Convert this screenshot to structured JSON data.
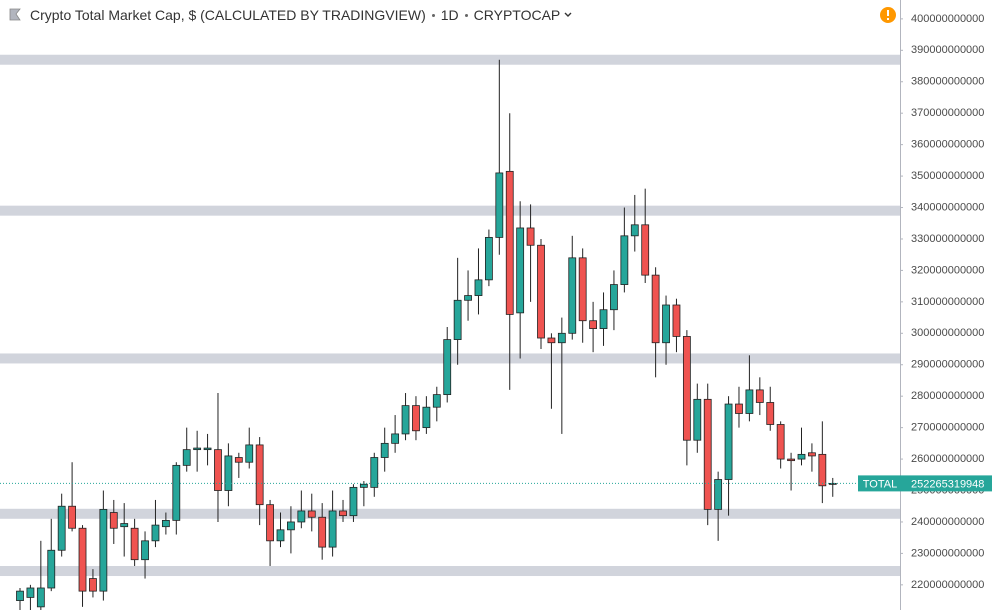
{
  "chart_data": {
    "type": "candlestick",
    "title": "Crypto Total Market Cap, $ (CALCULATED BY TRADINGVIEW)",
    "interval": "1D",
    "symbol": "CRYPTOCAP",
    "up_color": "#26a69a",
    "down_color": "#ef5350",
    "ylim": [
      212000000000,
      406000000000
    ],
    "yticks": [
      220000000000,
      230000000000,
      240000000000,
      250000000000,
      260000000000,
      270000000000,
      280000000000,
      290000000000,
      300000000000,
      310000000000,
      320000000000,
      330000000000,
      340000000000,
      350000000000,
      360000000000,
      370000000000,
      380000000000,
      390000000000,
      400000000000
    ],
    "grid": false,
    "levels": [
      387000000000,
      339000000000,
      292000000000,
      242600000000,
      224400000000
    ],
    "level_color": "#d1d4dc",
    "last_price": {
      "label": "TOTAL",
      "value": 252265319948
    },
    "open": [
      215000000000,
      216000000000,
      213000000000,
      219000000000,
      231000000000,
      245000000000,
      238000000000,
      222000000000,
      218000000000,
      243000000000,
      238500000000,
      238000000000,
      228000000000,
      234000000000,
      238500000000,
      240500000000,
      258000000000,
      263000000000,
      263000000000,
      263000000000,
      250000000000,
      260500000000,
      259000000000,
      264500000000,
      245500000000,
      234000000000,
      237500000000,
      240000000000,
      243500000000,
      241500000000,
      232000000000,
      243500000000,
      242000000000,
      251000000000,
      251000000000,
      260500000000,
      265000000000,
      268000000000,
      277000000000,
      270000000000,
      276500000000,
      280500000000,
      298000000000,
      310500000000,
      312000000000,
      317000000000,
      330500000000,
      351500000000,
      306500000000,
      333500000000,
      328000000000,
      298500000000,
      297000000000,
      300000000000,
      324000000000,
      304000000000,
      301500000000,
      307500000000,
      315500000000,
      331000000000,
      334500000000,
      318500000000,
      297000000000,
      309000000000,
      299000000000,
      266000000000,
      279000000000,
      244000000000,
      253500000000,
      277500000000,
      274500000000,
      282000000000,
      278000000000,
      271000000000,
      260000000000,
      260000000000,
      262000000000,
      261500000000,
      252000000000
    ],
    "high": [
      219000000000,
      220000000000,
      234000000000,
      241000000000,
      249000000000,
      259000000000,
      239000000000,
      225000000000,
      250000000000,
      247000000000,
      246000000000,
      241000000000,
      237000000000,
      247000000000,
      243000000000,
      259000000000,
      270000000000,
      269000000000,
      268000000000,
      281000000000,
      265000000000,
      262000000000,
      270000000000,
      267000000000,
      247000000000,
      243000000000,
      245000000000,
      250000000000,
      249000000000,
      246000000000,
      250000000000,
      247000000000,
      252000000000,
      253000000000,
      262000000000,
      270000000000,
      274000000000,
      281000000000,
      280000000000,
      280000000000,
      283000000000,
      302000000000,
      324000000000,
      320000000000,
      327000000000,
      333000000000,
      387000000000,
      370000000000,
      342000000000,
      341000000000,
      330000000000,
      300000000000,
      305000000000,
      331000000000,
      327000000000,
      310000000000,
      313000000000,
      320000000000,
      340000000000,
      344000000000,
      346000000000,
      321000000000,
      312000000000,
      311000000000,
      301000000000,
      284000000000,
      284000000000,
      256000000000,
      280000000000,
      283000000000,
      293000000000,
      286000000000,
      283000000000,
      272000000000,
      262000000000,
      270000000000,
      265000000000,
      272000000000,
      254000000000
    ],
    "low": [
      212000000000,
      212000000000,
      212000000000,
      218000000000,
      229000000000,
      237000000000,
      213000000000,
      216000000000,
      215000000000,
      233000000000,
      229000000000,
      226000000000,
      222000000000,
      232000000000,
      236000000000,
      236000000000,
      256000000000,
      256000000000,
      258000000000,
      240000000000,
      245000000000,
      254000000000,
      257000000000,
      239000000000,
      226000000000,
      232000000000,
      230000000000,
      238000000000,
      237000000000,
      228000000000,
      229000000000,
      240000000000,
      240000000000,
      245000000000,
      248000000000,
      256000000000,
      262000000000,
      266000000000,
      266000000000,
      268000000000,
      272000000000,
      278000000000,
      290000000000,
      304000000000,
      306000000000,
      315000000000,
      325000000000,
      282000000000,
      292000000000,
      310000000000,
      295000000000,
      276000000000,
      268000000000,
      298000000000,
      297000000000,
      294000000000,
      296000000000,
      301000000000,
      313000000000,
      326000000000,
      316000000000,
      286000000000,
      290000000000,
      294000000000,
      258000000000,
      262000000000,
      239000000000,
      234000000000,
      242000000000,
      270000000000,
      272000000000,
      274000000000,
      269000000000,
      257000000000,
      250000000000,
      258000000000,
      256000000000,
      246000000000,
      248000000000
    ],
    "close": [
      218000000000,
      219000000000,
      219000000000,
      231000000000,
      245000000000,
      238000000000,
      218000000000,
      218000000000,
      244000000000,
      238000000000,
      239500000000,
      228000000000,
      234000000000,
      239000000000,
      240500000000,
      258000000000,
      263000000000,
      263500000000,
      263500000000,
      250000000000,
      261000000000,
      259000000000,
      264500000000,
      245500000000,
      234000000000,
      237500000000,
      240000000000,
      243500000000,
      241500000000,
      232000000000,
      243500000000,
      242000000000,
      251000000000,
      252000000000,
      260500000000,
      265000000000,
      268000000000,
      277000000000,
      269000000000,
      276500000000,
      280500000000,
      298000000000,
      310500000000,
      312000000000,
      317000000000,
      330500000000,
      351000000000,
      306000000000,
      333500000000,
      328000000000,
      298500000000,
      297000000000,
      300000000000,
      324000000000,
      304000000000,
      301500000000,
      307500000000,
      315500000000,
      331000000000,
      334500000000,
      318500000000,
      297000000000,
      309000000000,
      299000000000,
      266000000000,
      279000000000,
      244000000000,
      253500000000,
      277500000000,
      274500000000,
      282000000000,
      278000000000,
      271000000000,
      260000000000,
      259500000000,
      261500000000,
      261000000000,
      251500000000,
      252265319948
    ]
  }
}
